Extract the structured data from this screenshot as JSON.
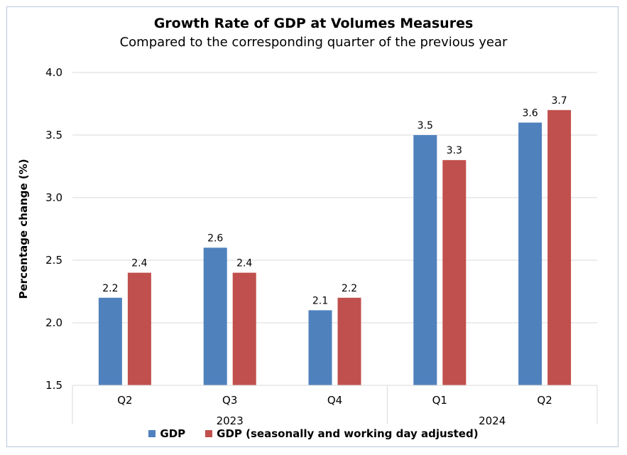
{
  "chart_data": {
    "type": "bar",
    "title": "Growth Rate of GDP at Volumes Measures",
    "subtitle": "Compared to the corresponding quarter of the previous year",
    "ylabel": "Percentage change (%)",
    "xlabel": "",
    "ylim": [
      1.5,
      4.0
    ],
    "yticks": [
      "1.5",
      "2.0",
      "2.5",
      "3.0",
      "3.5",
      "4.0"
    ],
    "grid": true,
    "legend_position": "bottom",
    "categories": [
      "Q2",
      "Q3",
      "Q4",
      "Q1",
      "Q2"
    ],
    "groups": [
      {
        "label": "2023",
        "span": [
          0,
          2
        ]
      },
      {
        "label": "2024",
        "span": [
          3,
          4
        ]
      }
    ],
    "series": [
      {
        "name": "GDP",
        "color": "#4f81bd",
        "values": [
          2.2,
          2.6,
          2.1,
          3.5,
          3.6
        ]
      },
      {
        "name": "GDP (seasonally and working day adjusted)",
        "color": "#c0504d",
        "values": [
          2.4,
          2.4,
          2.2,
          3.3,
          3.7
        ]
      }
    ]
  }
}
